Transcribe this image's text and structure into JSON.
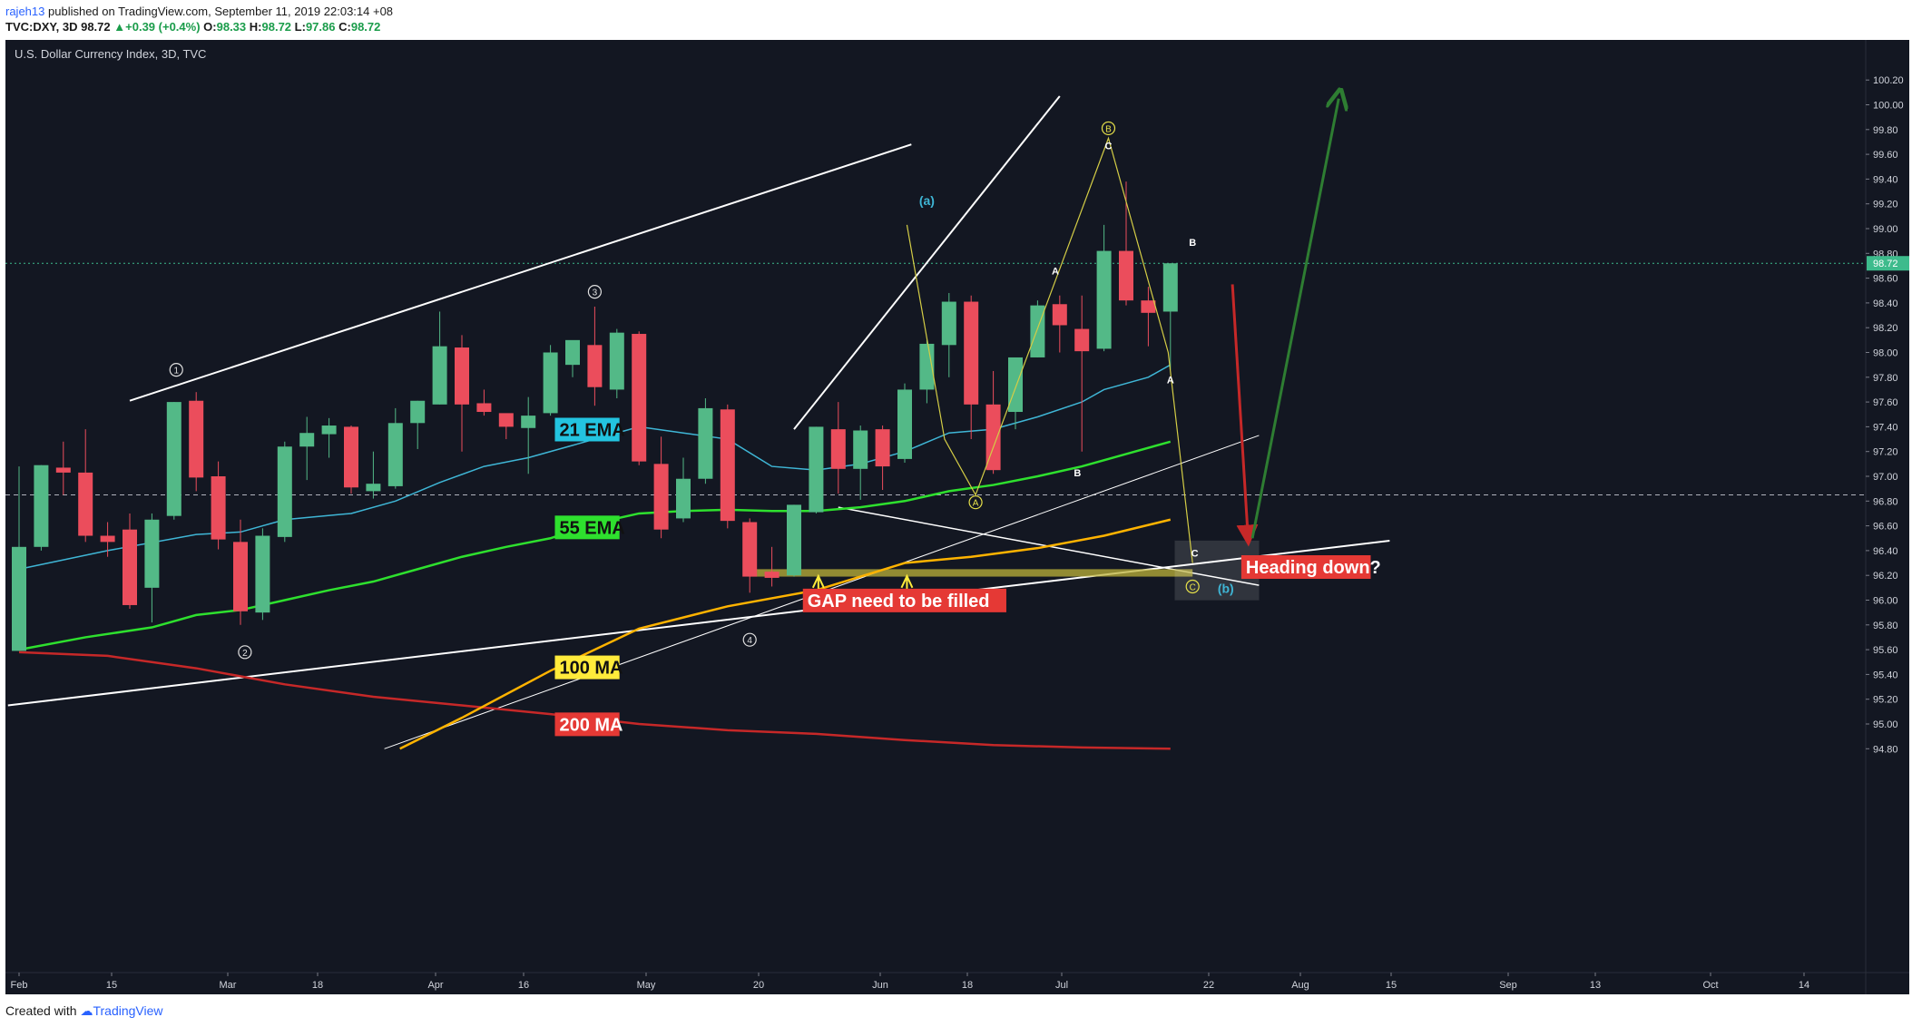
{
  "header": {
    "author": "rajeh13",
    "published": "published on TradingView.com, September 11, 2019 22:03:14 +08",
    "symbol": "TVC:DXY, 3D",
    "last": "98.72",
    "change": "+0.39 (+0.4%)",
    "o_label": "O:",
    "o": "98.33",
    "h_label": "H:",
    "h": "98.72",
    "l_label": "L:",
    "l": "97.86",
    "c_label": "C:",
    "c": "98.72"
  },
  "footer": {
    "created_with": "Created with",
    "brand": "TradingView"
  },
  "colors": {
    "bg": "#131722",
    "up": "#53b987",
    "down": "#eb4d5c",
    "ema21": "#3fb6d6",
    "ema55": "#2ee02e",
    "ma100": "#ffb300",
    "ma200": "#c62828",
    "trend": "#ffffff",
    "wave": "#d4cd46",
    "arrow_down": "#c62828",
    "arrow_up": "#2e7d32",
    "gap": "#bdb33a",
    "price_line": "#3dbb8c"
  },
  "chart_data": {
    "type": "candlestick",
    "title": "U.S. Dollar Currency Index, 3D, TVC",
    "last_price": 98.72,
    "y_range": [
      94.8,
      100.35
    ],
    "y_ticks": [
      "100.20",
      "100.00",
      "99.80",
      "99.60",
      "99.40",
      "99.20",
      "99.00",
      "98.80",
      "98.60",
      "98.40",
      "98.20",
      "98.00",
      "97.80",
      "97.60",
      "97.40",
      "97.20",
      "97.00",
      "96.80",
      "96.60",
      "96.40",
      "96.20",
      "96.00",
      "95.80",
      "95.60",
      "95.40",
      "95.20",
      "95.00",
      "94.80"
    ],
    "x_ticks": [
      "Feb",
      "15",
      "Mar",
      "18",
      "Apr",
      "16",
      "May",
      "20",
      "Jun",
      "18",
      "Jul",
      "22",
      "Aug",
      "15",
      "Sep",
      "13",
      "Oct",
      "14"
    ],
    "candles": [
      [
        95.59,
        97.08,
        95.59,
        96.43
      ],
      [
        96.43,
        97.09,
        96.4,
        97.09
      ],
      [
        97.07,
        97.28,
        96.85,
        97.03
      ],
      [
        97.03,
        97.38,
        96.47,
        96.52
      ],
      [
        96.52,
        96.63,
        96.35,
        96.47
      ],
      [
        96.57,
        96.7,
        95.93,
        95.96
      ],
      [
        96.1,
        96.7,
        95.82,
        96.65
      ],
      [
        96.68,
        97.6,
        96.65,
        97.6
      ],
      [
        97.61,
        97.68,
        96.88,
        96.99
      ],
      [
        97.0,
        97.12,
        96.41,
        96.49
      ],
      [
        96.47,
        96.65,
        95.8,
        95.91
      ],
      [
        95.9,
        96.58,
        95.84,
        96.52
      ],
      [
        96.51,
        97.28,
        96.47,
        97.24
      ],
      [
        97.24,
        97.48,
        96.97,
        97.35
      ],
      [
        97.34,
        97.47,
        97.15,
        97.41
      ],
      [
        97.4,
        97.41,
        96.86,
        96.91
      ],
      [
        96.88,
        97.2,
        96.82,
        96.94
      ],
      [
        96.92,
        97.55,
        96.9,
        97.43
      ],
      [
        97.43,
        97.61,
        97.22,
        97.61
      ],
      [
        97.58,
        98.33,
        97.58,
        98.05
      ],
      [
        98.04,
        98.14,
        97.2,
        97.58
      ],
      [
        97.59,
        97.7,
        97.49,
        97.52
      ],
      [
        97.51,
        97.48,
        97.3,
        97.4
      ],
      [
        97.39,
        97.64,
        97.02,
        97.49
      ],
      [
        97.51,
        98.06,
        97.49,
        98.0
      ],
      [
        97.9,
        98.08,
        97.8,
        98.1
      ],
      [
        98.06,
        98.37,
        97.57,
        97.72
      ],
      [
        97.7,
        98.19,
        97.63,
        98.16
      ],
      [
        98.15,
        98.17,
        97.09,
        97.12
      ],
      [
        97.1,
        97.32,
        96.5,
        96.57
      ],
      [
        96.66,
        97.15,
        96.63,
        96.98
      ],
      [
        96.98,
        97.63,
        96.94,
        97.55
      ],
      [
        97.54,
        97.58,
        96.58,
        96.64
      ],
      [
        96.63,
        96.66,
        96.06,
        96.19
      ],
      [
        96.23,
        96.43,
        96.11,
        96.18
      ],
      [
        96.2,
        96.77,
        96.19,
        96.77
      ],
      [
        96.71,
        97.4,
        96.7,
        97.4
      ],
      [
        97.38,
        97.6,
        96.86,
        97.06
      ],
      [
        97.06,
        97.41,
        96.81,
        97.37
      ],
      [
        97.38,
        97.41,
        96.89,
        97.08
      ],
      [
        97.14,
        97.75,
        97.11,
        97.7
      ],
      [
        97.7,
        98.1,
        97.59,
        98.07
      ],
      [
        98.06,
        98.48,
        97.8,
        98.41
      ],
      [
        98.41,
        98.46,
        97.3,
        97.58
      ],
      [
        97.58,
        97.85,
        97.02,
        97.05
      ],
      [
        97.52,
        97.93,
        97.38,
        97.96
      ],
      [
        97.96,
        98.42,
        97.96,
        98.38
      ],
      [
        98.39,
        98.46,
        98.0,
        98.22
      ],
      [
        98.19,
        98.46,
        97.2,
        98.01
      ],
      [
        98.03,
        99.03,
        98.01,
        98.82
      ],
      [
        98.82,
        99.38,
        98.38,
        98.42
      ],
      [
        98.42,
        98.53,
        98.05,
        98.32
      ],
      [
        98.33,
        98.72,
        97.86,
        98.72
      ]
    ],
    "ema21_points": [
      [
        0,
        96.25
      ],
      [
        4,
        96.4
      ],
      [
        8,
        96.53
      ],
      [
        10,
        96.55
      ],
      [
        12,
        96.65
      ],
      [
        15,
        96.7
      ],
      [
        17,
        96.8
      ],
      [
        19,
        96.95
      ],
      [
        21,
        97.08
      ],
      [
        23,
        97.15
      ],
      [
        25,
        97.25
      ],
      [
        27,
        97.35
      ],
      [
        28,
        97.4
      ],
      [
        30,
        97.35
      ],
      [
        32,
        97.3
      ],
      [
        34,
        97.08
      ],
      [
        36,
        97.05
      ],
      [
        38,
        97.1
      ],
      [
        40,
        97.2
      ],
      [
        42,
        97.35
      ],
      [
        44,
        97.38
      ],
      [
        46,
        97.48
      ],
      [
        48,
        97.6
      ],
      [
        49,
        97.7
      ],
      [
        51,
        97.8
      ],
      [
        52,
        97.9
      ]
    ],
    "ema55_points": [
      [
        0,
        95.6
      ],
      [
        3,
        95.7
      ],
      [
        6,
        95.78
      ],
      [
        8,
        95.88
      ],
      [
        10,
        95.92
      ],
      [
        12,
        96.0
      ],
      [
        14,
        96.08
      ],
      [
        16,
        96.15
      ],
      [
        18,
        96.25
      ],
      [
        20,
        96.35
      ],
      [
        22,
        96.43
      ],
      [
        24,
        96.5
      ],
      [
        26,
        96.62
      ],
      [
        28,
        96.7
      ],
      [
        30,
        96.72
      ],
      [
        32,
        96.73
      ],
      [
        34,
        96.72
      ],
      [
        36,
        96.72
      ],
      [
        38,
        96.75
      ],
      [
        40,
        96.8
      ],
      [
        42,
        96.88
      ],
      [
        44,
        96.93
      ],
      [
        46,
        97.0
      ],
      [
        48,
        97.08
      ],
      [
        50,
        97.18
      ],
      [
        52,
        97.28
      ]
    ],
    "ma100_points": [
      [
        17.2,
        94.8
      ],
      [
        20,
        95.05
      ],
      [
        24,
        95.43
      ],
      [
        28,
        95.77
      ],
      [
        32,
        95.95
      ],
      [
        36,
        96.08
      ],
      [
        40,
        96.3
      ],
      [
        43,
        96.35
      ],
      [
        46,
        96.42
      ],
      [
        49,
        96.52
      ],
      [
        52,
        96.65
      ]
    ],
    "ma200_points": [
      [
        0,
        95.58
      ],
      [
        4,
        95.55
      ],
      [
        8,
        95.45
      ],
      [
        12,
        95.32
      ],
      [
        16,
        95.22
      ],
      [
        20,
        95.15
      ],
      [
        24,
        95.08
      ],
      [
        28,
        95.0
      ],
      [
        32,
        94.95
      ],
      [
        36,
        94.92
      ],
      [
        40,
        94.87
      ],
      [
        44,
        94.83
      ],
      [
        48,
        94.81
      ],
      [
        52,
        94.8
      ]
    ],
    "gap_zone": [
      96.19,
      96.25
    ],
    "target_box": [
      96.0,
      96.48
    ],
    "labels": {
      "ema21": "21 EMA",
      "ema55": "55 EMA",
      "ma100": "100 MA",
      "ma200": "200 MA",
      "gap": "GAP need to be filled",
      "heading": "Heading down?",
      "w1": "1",
      "w2": "2",
      "w3": "3",
      "w4": "4",
      "a_paren": "(a)",
      "b_paren": "(b)",
      "A_circ": "A",
      "B_circ": "B",
      "C_circ": "C",
      "sub_A1": "A",
      "sub_B1": "B",
      "sub_C1": "C",
      "sub_A2": "A",
      "sub_B2": "B",
      "sub_C2": "C"
    }
  }
}
